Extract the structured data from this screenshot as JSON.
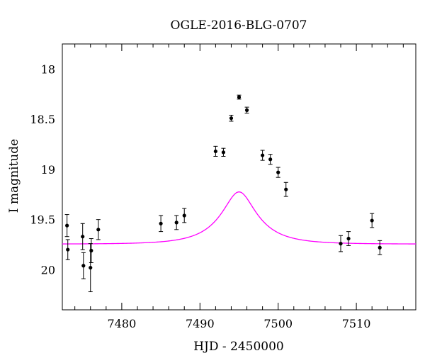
{
  "chart_data": {
    "type": "scatter",
    "title": "OGLE-2016-BLG-0707",
    "xlabel": "HJD - 2450000",
    "ylabel": "I magnitude",
    "xlim": [
      7472.4,
      7517.6
    ],
    "ylim": [
      20.4,
      17.75
    ],
    "y_inverted": true,
    "x_ticks": [
      7480,
      7490,
      7500,
      7510
    ],
    "y_ticks": [
      18,
      18.5,
      19,
      19.5,
      20
    ],
    "x_tick_labels": [
      "7480",
      "7490",
      "7500",
      "7510"
    ],
    "y_tick_labels": [
      "18",
      "18.5",
      "19",
      "19.5",
      "20"
    ],
    "grid": false,
    "series": [
      {
        "kind": "points",
        "color": "#000000",
        "points": [
          {
            "x": 7473.0,
            "y": 19.56,
            "err": 0.11
          },
          {
            "x": 7473.1,
            "y": 19.8,
            "err": 0.1
          },
          {
            "x": 7475.0,
            "y": 19.67,
            "err": 0.13
          },
          {
            "x": 7475.1,
            "y": 19.96,
            "err": 0.13
          },
          {
            "x": 7476.0,
            "y": 19.98,
            "err": 0.24
          },
          {
            "x": 7476.1,
            "y": 19.81,
            "err": 0.12
          },
          {
            "x": 7477.0,
            "y": 19.6,
            "err": 0.1
          },
          {
            "x": 7485.0,
            "y": 19.54,
            "err": 0.08
          },
          {
            "x": 7487.0,
            "y": 19.53,
            "err": 0.07
          },
          {
            "x": 7488.0,
            "y": 19.46,
            "err": 0.07
          },
          {
            "x": 7492.0,
            "y": 18.82,
            "err": 0.05
          },
          {
            "x": 7493.0,
            "y": 18.83,
            "err": 0.04
          },
          {
            "x": 7494.0,
            "y": 18.49,
            "err": 0.03
          },
          {
            "x": 7495.0,
            "y": 18.28,
            "err": 0.02
          },
          {
            "x": 7496.0,
            "y": 18.41,
            "err": 0.03
          },
          {
            "x": 7498.0,
            "y": 18.86,
            "err": 0.05
          },
          {
            "x": 7499.0,
            "y": 18.9,
            "err": 0.05
          },
          {
            "x": 7500.0,
            "y": 19.03,
            "err": 0.05
          },
          {
            "x": 7501.0,
            "y": 19.2,
            "err": 0.07
          },
          {
            "x": 7508.0,
            "y": 19.74,
            "err": 0.08
          },
          {
            "x": 7509.0,
            "y": 19.69,
            "err": 0.07
          },
          {
            "x": 7512.0,
            "y": 19.51,
            "err": 0.07
          },
          {
            "x": 7513.0,
            "y": 19.78,
            "err": 0.07
          }
        ]
      },
      {
        "kind": "model-curve",
        "color": "#ff00ff",
        "model": {
          "t0": 7495.0,
          "tE": 5.1,
          "u0": 0.39,
          "base_mag": 19.745,
          "fs": 0.36
        }
      }
    ]
  }
}
